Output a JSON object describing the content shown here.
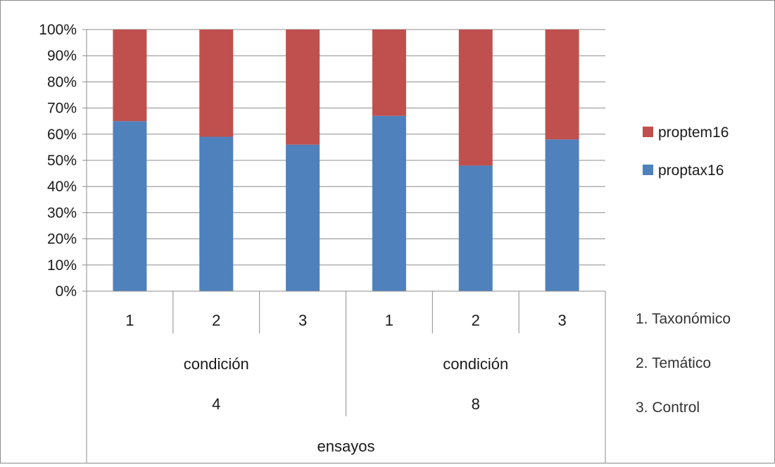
{
  "chart_data": {
    "type": "bar",
    "stacked": true,
    "percent_stacked": true,
    "categories": [
      "1",
      "2",
      "3",
      "1",
      "2",
      "3"
    ],
    "groups": [
      {
        "label": "condición",
        "value": "4"
      },
      {
        "label": "condición",
        "value": "8"
      }
    ],
    "outer_label": "ensayos",
    "series": [
      {
        "name": "proptax16",
        "color": "#4f81bd",
        "values": [
          65,
          59,
          56,
          67,
          48,
          58
        ]
      },
      {
        "name": "proptem16",
        "color": "#c0504d",
        "values": [
          35,
          41,
          44,
          33,
          52,
          42
        ]
      }
    ],
    "ylim": [
      0,
      100
    ],
    "y_ticks": [
      "0%",
      "10%",
      "20%",
      "30%",
      "40%",
      "50%",
      "60%",
      "70%",
      "80%",
      "90%",
      "100%"
    ],
    "grid": true,
    "legend_position": "right",
    "notes": [
      "1. Taxonómico",
      "2. Temático",
      "3. Control"
    ]
  }
}
